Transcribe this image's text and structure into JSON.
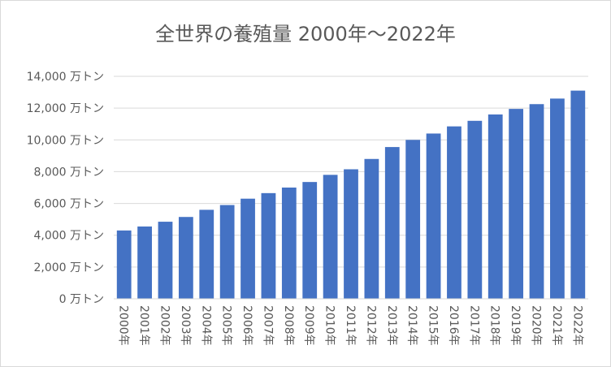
{
  "chart_data": {
    "type": "bar",
    "title": "全世界の養殖量 2000年～2022年",
    "xlabel": "",
    "ylabel": "",
    "categories": [
      "2000年",
      "2001年",
      "2002年",
      "2003年",
      "2004年",
      "2005年",
      "2006年",
      "2007年",
      "2008年",
      "2009年",
      "2010年",
      "2011年",
      "2012年",
      "2013年",
      "2014年",
      "2015年",
      "2016年",
      "2017年",
      "2018年",
      "2019年",
      "2020年",
      "2021年",
      "2022年"
    ],
    "series": [
      {
        "values": [
          4300,
          4550,
          4850,
          5150,
          5600,
          5900,
          6300,
          6650,
          7000,
          7350,
          7800,
          8150,
          8800,
          9550,
          10000,
          10400,
          10850,
          11200,
          11600,
          11950,
          12250,
          12600,
          13100
        ],
        "color": "#4472C4"
      }
    ],
    "ylim": [
      0,
      14000
    ],
    "yticks": [
      0,
      2000,
      4000,
      6000,
      8000,
      10000,
      12000,
      14000
    ],
    "ytick_labels": [
      "0 万トン",
      "2,000 万トン",
      "4,000 万トン",
      "6,000 万トン",
      "8,000 万トン",
      "10,000 万トン",
      "12,000 万トン",
      "14,000 万トン"
    ],
    "grid": true,
    "legend": "none"
  }
}
